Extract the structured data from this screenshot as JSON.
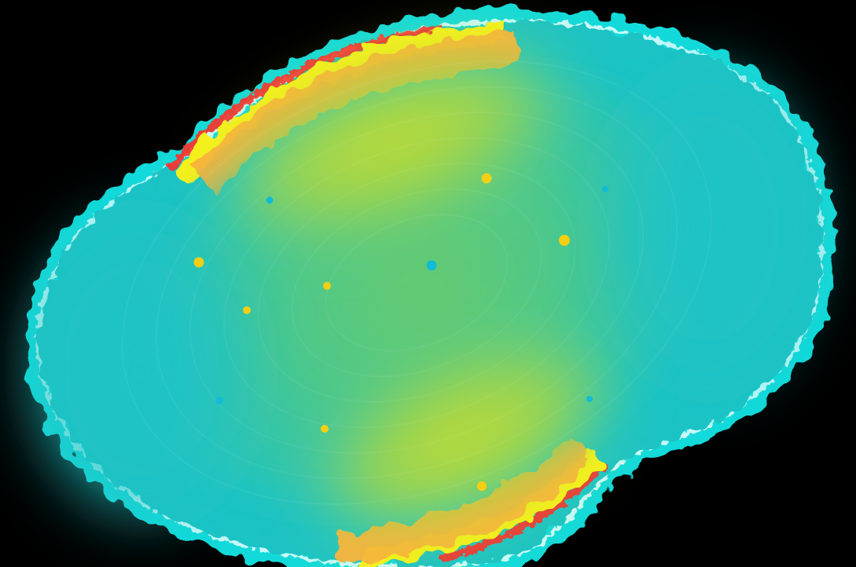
{
  "background_color": "#000000",
  "palette": {
    "glow_cyan": "#19f2f2",
    "rim_white": "#eaffff",
    "teal": "#1fc3c5",
    "green": "#6cca6a",
    "lime": "#b6d83a",
    "orange": "#ffb23a",
    "yellow": "#f7f11a",
    "red_edge": "#ff2a2a",
    "dot_yellow": "#f5cf14",
    "dot_cyan": "#12bcd4"
  },
  "dots": [
    {
      "color": "dot_yellow"
    },
    {
      "color": "dot_cyan"
    },
    {
      "color": "dot_yellow"
    },
    {
      "color": "dot_yellow"
    },
    {
      "color": "dot_yellow"
    },
    {
      "color": "dot_cyan"
    },
    {
      "color": "dot_yellow"
    },
    {
      "color": "dot_cyan"
    },
    {
      "color": "dot_cyan"
    },
    {
      "color": "dot_yellow"
    },
    {
      "color": "dot_cyan"
    },
    {
      "color": "dot_yellow"
    }
  ]
}
